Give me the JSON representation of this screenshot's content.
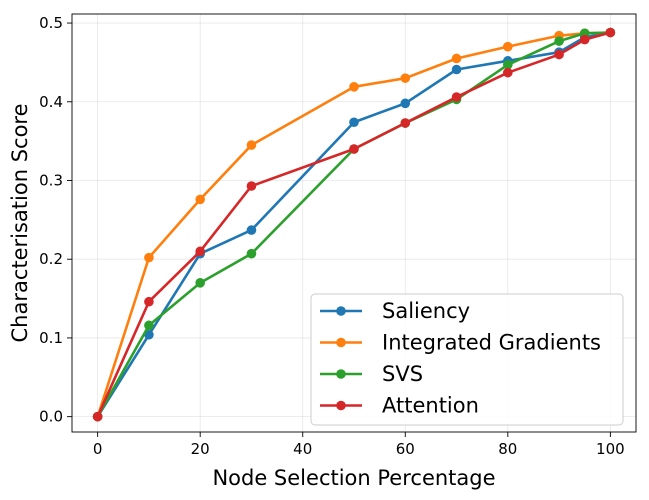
{
  "chart_data": {
    "type": "line",
    "title": "",
    "xlabel": "Node Selection Percentage",
    "ylabel": "Characterisation Score",
    "xlim": [
      -5,
      105
    ],
    "ylim": [
      -0.0195,
      0.5115
    ],
    "xticks": [
      0,
      20,
      40,
      60,
      80,
      100
    ],
    "yticks": [
      0.0,
      0.1,
      0.2,
      0.3,
      0.4,
      0.5
    ],
    "xtick_labels": [
      "0",
      "20",
      "40",
      "60",
      "80",
      "100"
    ],
    "ytick_labels": [
      "0.0",
      "0.1",
      "0.2",
      "0.3",
      "0.4",
      "0.5"
    ],
    "grid": true,
    "legend_position": "lower-right",
    "series": [
      {
        "name": "Saliency",
        "color": "#1f77b4",
        "x": [
          0,
          10,
          20,
          30,
          50,
          60,
          70,
          80,
          90,
          95,
          100
        ],
        "y": [
          0.0,
          0.104,
          0.207,
          0.237,
          0.374,
          0.398,
          0.441,
          0.452,
          0.463,
          0.482,
          0.488
        ]
      },
      {
        "name": "Integrated Gradients",
        "color": "#ff7f0e",
        "x": [
          0,
          10,
          20,
          30,
          50,
          60,
          70,
          80,
          90,
          95,
          100
        ],
        "y": [
          0.0,
          0.202,
          0.276,
          0.345,
          0.419,
          0.43,
          0.455,
          0.47,
          0.484,
          0.487,
          0.488
        ]
      },
      {
        "name": "SVS",
        "color": "#2ca02c",
        "x": [
          0,
          10,
          20,
          30,
          50,
          60,
          70,
          80,
          90,
          95,
          100
        ],
        "y": [
          0.0,
          0.116,
          0.17,
          0.207,
          0.34,
          0.373,
          0.403,
          0.447,
          0.477,
          0.487,
          0.488
        ]
      },
      {
        "name": "Attention",
        "color": "#d62728",
        "x": [
          0,
          10,
          20,
          30,
          50,
          60,
          70,
          80,
          90,
          95,
          100
        ],
        "y": [
          0.0,
          0.146,
          0.21,
          0.293,
          0.34,
          0.373,
          0.406,
          0.437,
          0.46,
          0.479,
          0.488
        ]
      }
    ]
  }
}
